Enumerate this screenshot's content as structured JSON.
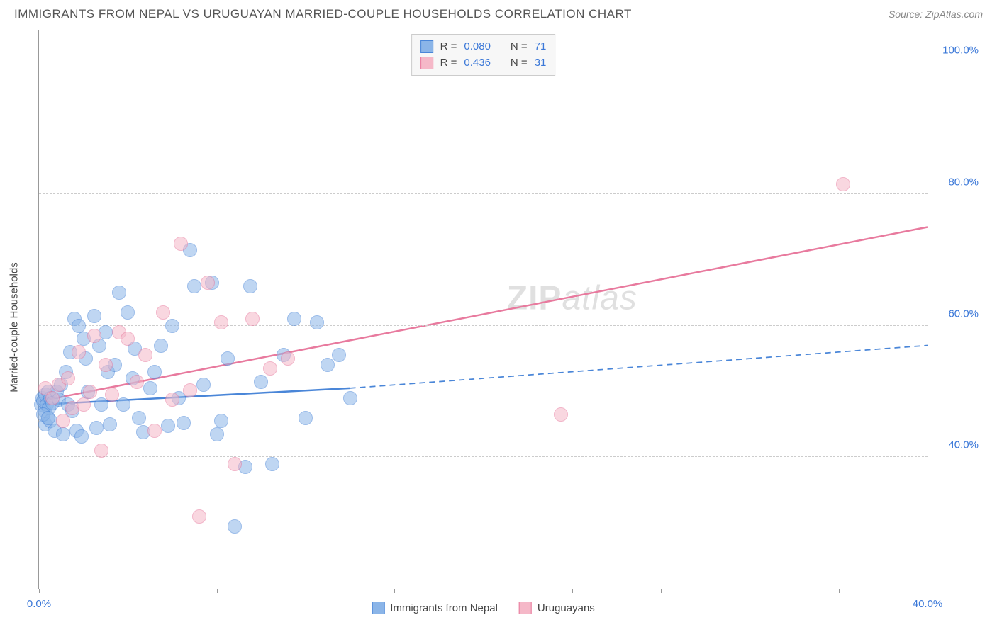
{
  "header": {
    "title": "IMMIGRANTS FROM NEPAL VS URUGUAYAN MARRIED-COUPLE HOUSEHOLDS CORRELATION CHART",
    "source": "Source: ZipAtlas.com"
  },
  "watermark": {
    "pre": "ZIP",
    "post": "atlas"
  },
  "chart": {
    "type": "scatter",
    "background_color": "#ffffff",
    "grid_color": "#cccccc",
    "axis_color": "#999999",
    "tick_label_color": "#3b78d8",
    "y_axis_title": "Married-couple Households",
    "x_axis_title": "",
    "xlim": [
      0,
      40
    ],
    "ylim": [
      20,
      105
    ],
    "y_ticks": [
      40,
      60,
      80,
      100
    ],
    "y_tick_labels": [
      "40.0%",
      "60.0%",
      "80.0%",
      "100.0%"
    ],
    "x_ticks": [
      0,
      4,
      8,
      12,
      16,
      20,
      24,
      28,
      32,
      36,
      40
    ],
    "x_tick_labels_shown": {
      "0": "0.0%",
      "40": "40.0%"
    },
    "point_radius": 10,
    "series": [
      {
        "name": "Immigrants from Nepal",
        "color_fill": "#8bb5e8",
        "color_stroke": "#4a86d8",
        "r_label": "0.080",
        "n_label": "71",
        "trend": {
          "x1": 0,
          "y1": 48,
          "x2_solid": 14,
          "y2_solid": 50.5,
          "x2_dash": 40,
          "y2_dash": 57,
          "width": 2.5
        },
        "points": [
          [
            0.1,
            48
          ],
          [
            0.15,
            49
          ],
          [
            0.2,
            48.5
          ],
          [
            0.25,
            47
          ],
          [
            0.3,
            49.5
          ],
          [
            0.35,
            48
          ],
          [
            0.4,
            50
          ],
          [
            0.45,
            47.5
          ],
          [
            0.5,
            49
          ],
          [
            0.6,
            48.2
          ],
          [
            0.3,
            45
          ],
          [
            0.5,
            45.5
          ],
          [
            0.7,
            44
          ],
          [
            0.8,
            50
          ],
          [
            0.9,
            48.8
          ],
          [
            1.0,
            51
          ],
          [
            1.1,
            43.5
          ],
          [
            1.2,
            53
          ],
          [
            1.3,
            48
          ],
          [
            1.4,
            56
          ],
          [
            1.5,
            47
          ],
          [
            1.6,
            61
          ],
          [
            1.7,
            44
          ],
          [
            1.8,
            60
          ],
          [
            1.9,
            43.2
          ],
          [
            2.0,
            58
          ],
          [
            2.1,
            55
          ],
          [
            2.2,
            50
          ],
          [
            2.5,
            61.5
          ],
          [
            2.6,
            44.5
          ],
          [
            2.7,
            57
          ],
          [
            2.8,
            48
          ],
          [
            3.0,
            59
          ],
          [
            3.1,
            53
          ],
          [
            3.2,
            45
          ],
          [
            3.4,
            54
          ],
          [
            3.6,
            65
          ],
          [
            3.8,
            48
          ],
          [
            4.0,
            62
          ],
          [
            4.2,
            52
          ],
          [
            4.3,
            56.5
          ],
          [
            4.5,
            46
          ],
          [
            4.7,
            43.8
          ],
          [
            5.0,
            50.5
          ],
          [
            5.2,
            53
          ],
          [
            5.5,
            57
          ],
          [
            5.8,
            44.8
          ],
          [
            6.0,
            60
          ],
          [
            6.3,
            49
          ],
          [
            6.5,
            45.2
          ],
          [
            6.8,
            71.5
          ],
          [
            7.0,
            66
          ],
          [
            7.4,
            51
          ],
          [
            7.8,
            66.5
          ],
          [
            8.0,
            43.5
          ],
          [
            8.2,
            45.5
          ],
          [
            8.5,
            55
          ],
          [
            8.8,
            29.5
          ],
          [
            9.3,
            38.5
          ],
          [
            9.5,
            66
          ],
          [
            10.0,
            51.5
          ],
          [
            10.5,
            39
          ],
          [
            11.0,
            55.5
          ],
          [
            11.5,
            61
          ],
          [
            12.0,
            46
          ],
          [
            12.5,
            60.5
          ],
          [
            13.0,
            54
          ],
          [
            13.5,
            55.5
          ],
          [
            14.0,
            49
          ],
          [
            0.2,
            46.5
          ],
          [
            0.4,
            46
          ]
        ]
      },
      {
        "name": "Uruguayans",
        "color_fill": "#f5b8c8",
        "color_stroke": "#e87a9e",
        "r_label": "0.436",
        "n_label": "31",
        "trend": {
          "x1": 0,
          "y1": 48.5,
          "x2_solid": 40,
          "y2_solid": 75,
          "x2_dash": 40,
          "y2_dash": 75,
          "width": 2.5
        },
        "points": [
          [
            0.3,
            50.5
          ],
          [
            0.6,
            49
          ],
          [
            0.9,
            51
          ],
          [
            1.1,
            45.5
          ],
          [
            1.3,
            52
          ],
          [
            1.5,
            47.5
          ],
          [
            1.8,
            56
          ],
          [
            2.0,
            48
          ],
          [
            2.3,
            50
          ],
          [
            2.5,
            58.5
          ],
          [
            2.8,
            41
          ],
          [
            3.0,
            54
          ],
          [
            3.3,
            49.5
          ],
          [
            3.6,
            59
          ],
          [
            4.0,
            58
          ],
          [
            4.4,
            51.5
          ],
          [
            4.8,
            55.5
          ],
          [
            5.2,
            44
          ],
          [
            5.6,
            62
          ],
          [
            6.0,
            48.8
          ],
          [
            6.4,
            72.5
          ],
          [
            6.8,
            50.2
          ],
          [
            7.2,
            31
          ],
          [
            7.6,
            66.5
          ],
          [
            8.2,
            60.5
          ],
          [
            8.8,
            39
          ],
          [
            9.6,
            61
          ],
          [
            10.4,
            53.5
          ],
          [
            11.2,
            55
          ],
          [
            23.5,
            46.5
          ],
          [
            36.2,
            81.5
          ]
        ]
      }
    ],
    "legend_top": {
      "bg": "#f7f7f7",
      "border": "#cccccc",
      "rows": [
        {
          "swatch_fill": "#8bb5e8",
          "swatch_stroke": "#4a86d8",
          "r": "0.080",
          "n": "71"
        },
        {
          "swatch_fill": "#f5b8c8",
          "swatch_stroke": "#e87a9e",
          "r": "0.436",
          "n": "31"
        }
      ]
    },
    "legend_bottom": [
      {
        "swatch_fill": "#8bb5e8",
        "swatch_stroke": "#4a86d8",
        "label": "Immigrants from Nepal"
      },
      {
        "swatch_fill": "#f5b8c8",
        "swatch_stroke": "#e87a9e",
        "label": "Uruguayans"
      }
    ]
  }
}
